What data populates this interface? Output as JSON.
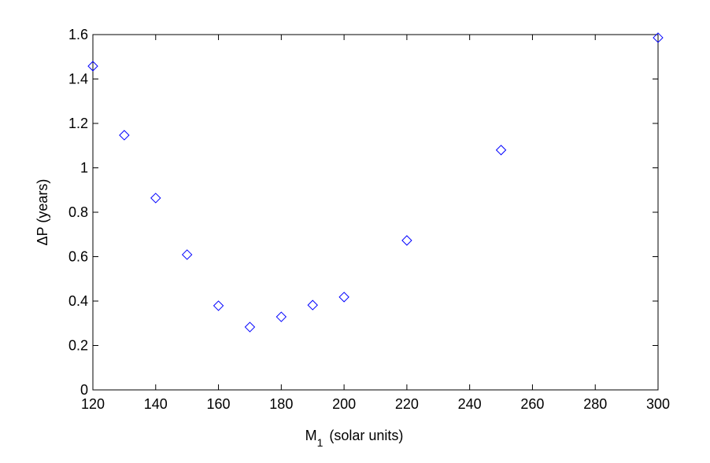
{
  "chart_data": {
    "type": "scatter",
    "xlabel": {
      "main": "M",
      "sub": "1",
      "rest": "(solar units)"
    },
    "ylabel": "ΔP (years)",
    "x": [
      120,
      130,
      140,
      150,
      160,
      170,
      180,
      190,
      200,
      220,
      250,
      300
    ],
    "series": [
      {
        "color": "#0000ff",
        "values": [
          1.458,
          1.147,
          0.864,
          0.609,
          0.379,
          0.283,
          0.329,
          0.382,
          0.418,
          0.673,
          1.08,
          1.586
        ]
      }
    ],
    "xlim": [
      120,
      300
    ],
    "xticks": [
      120,
      140,
      160,
      180,
      200,
      220,
      240,
      260,
      280,
      300
    ],
    "ylim": [
      0,
      1.6
    ],
    "yticks": [
      0,
      0.2,
      0.4,
      0.6,
      0.8,
      1,
      1.2,
      1.4,
      1.6
    ],
    "grid": false
  }
}
